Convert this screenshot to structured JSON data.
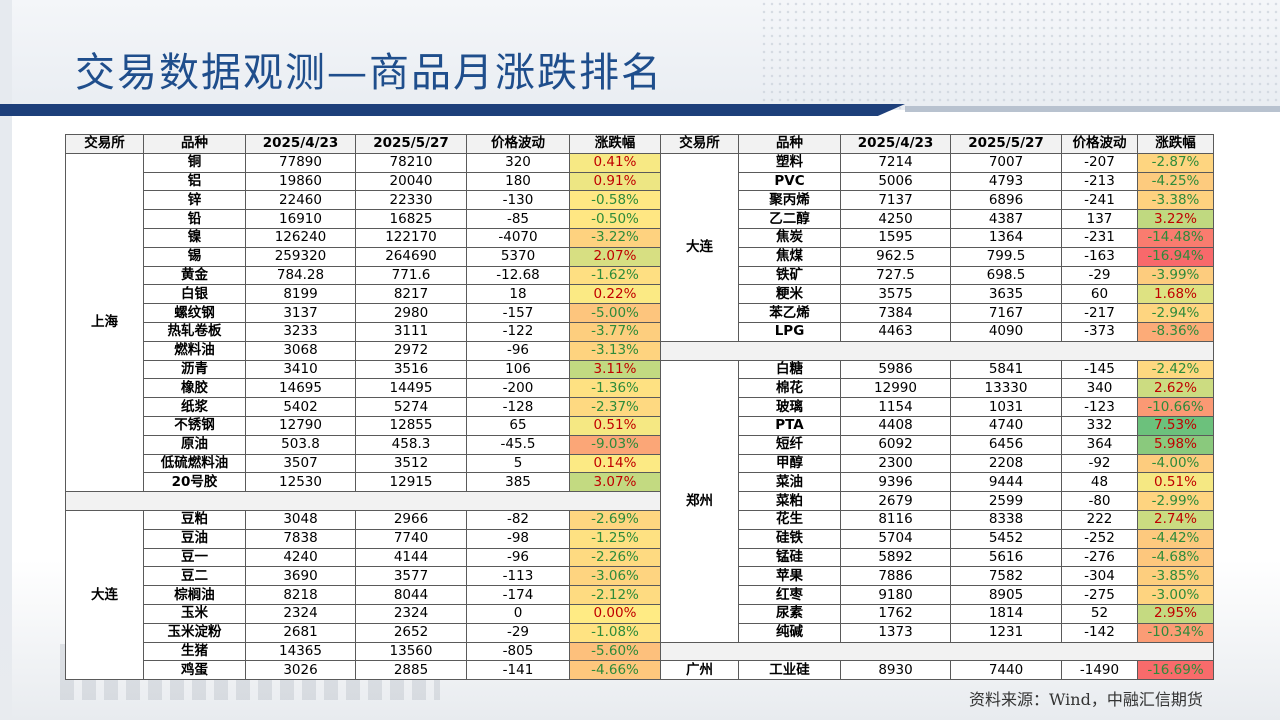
{
  "title": "交易数据观测—商品月涨跌排名",
  "source": "资料来源：Wind，中融汇信期货",
  "colors": {
    "accent": "#1d3f7a",
    "red": "#f8696b",
    "yellow": "#ffeb84",
    "green": "#63be7b"
  },
  "headers": [
    "交易所",
    "品种",
    "2025/4/23",
    "2025/5/27",
    "价格波动",
    "涨跌幅"
  ],
  "left_groups": [
    {
      "exchange": "上海",
      "rows": [
        {
          "name": "铜",
          "p1": "77890",
          "p2": "78210",
          "diff": "320",
          "chg": "0.41%"
        },
        {
          "name": "铝",
          "p1": "19860",
          "p2": "20040",
          "diff": "180",
          "chg": "0.91%"
        },
        {
          "name": "锌",
          "p1": "22460",
          "p2": "22330",
          "diff": "-130",
          "chg": "-0.58%"
        },
        {
          "name": "铅",
          "p1": "16910",
          "p2": "16825",
          "diff": "-85",
          "chg": "-0.50%"
        },
        {
          "name": "镍",
          "p1": "126240",
          "p2": "122170",
          "diff": "-4070",
          "chg": "-3.22%"
        },
        {
          "name": "锡",
          "p1": "259320",
          "p2": "264690",
          "diff": "5370",
          "chg": "2.07%"
        },
        {
          "name": "黄金",
          "p1": "784.28",
          "p2": "771.6",
          "diff": "-12.68",
          "chg": "-1.62%"
        },
        {
          "name": "白银",
          "p1": "8199",
          "p2": "8217",
          "diff": "18",
          "chg": "0.22%"
        },
        {
          "name": "螺纹钢",
          "p1": "3137",
          "p2": "2980",
          "diff": "-157",
          "chg": "-5.00%"
        },
        {
          "name": "热轧卷板",
          "p1": "3233",
          "p2": "3111",
          "diff": "-122",
          "chg": "-3.77%"
        },
        {
          "name": "燃料油",
          "p1": "3068",
          "p2": "2972",
          "diff": "-96",
          "chg": "-3.13%"
        },
        {
          "name": "沥青",
          "p1": "3410",
          "p2": "3516",
          "diff": "106",
          "chg": "3.11%"
        },
        {
          "name": "橡胶",
          "p1": "14695",
          "p2": "14495",
          "diff": "-200",
          "chg": "-1.36%"
        },
        {
          "name": "纸浆",
          "p1": "5402",
          "p2": "5274",
          "diff": "-128",
          "chg": "-2.37%"
        },
        {
          "name": "不锈钢",
          "p1": "12790",
          "p2": "12855",
          "diff": "65",
          "chg": "0.51%"
        },
        {
          "name": "原油",
          "p1": "503.8",
          "p2": "458.3",
          "diff": "-45.5",
          "chg": "-9.03%"
        },
        {
          "name": "低硫燃料油",
          "p1": "3507",
          "p2": "3512",
          "diff": "5",
          "chg": "0.14%"
        },
        {
          "name": "20号胶",
          "p1": "12530",
          "p2": "12915",
          "diff": "385",
          "chg": "3.07%"
        }
      ]
    },
    {
      "exchange": "大连",
      "rows": [
        {
          "name": "豆粕",
          "p1": "3048",
          "p2": "2966",
          "diff": "-82",
          "chg": "-2.69%"
        },
        {
          "name": "豆油",
          "p1": "7838",
          "p2": "7740",
          "diff": "-98",
          "chg": "-1.25%"
        },
        {
          "name": "豆一",
          "p1": "4240",
          "p2": "4144",
          "diff": "-96",
          "chg": "-2.26%"
        },
        {
          "name": "豆二",
          "p1": "3690",
          "p2": "3577",
          "diff": "-113",
          "chg": "-3.06%"
        },
        {
          "name": "棕榈油",
          "p1": "8218",
          "p2": "8044",
          "diff": "-174",
          "chg": "-2.12%"
        },
        {
          "name": "玉米",
          "p1": "2324",
          "p2": "2324",
          "diff": "0",
          "chg": "0.00%"
        },
        {
          "name": "玉米淀粉",
          "p1": "2681",
          "p2": "2652",
          "diff": "-29",
          "chg": "-1.08%"
        },
        {
          "name": "生猪",
          "p1": "14365",
          "p2": "13560",
          "diff": "-805",
          "chg": "-5.60%"
        },
        {
          "name": "鸡蛋",
          "p1": "3026",
          "p2": "2885",
          "diff": "-141",
          "chg": "-4.66%"
        }
      ]
    }
  ],
  "right_groups": [
    {
      "exchange": "大连",
      "rows": [
        {
          "name": "塑料",
          "p1": "7214",
          "p2": "7007",
          "diff": "-207",
          "chg": "-2.87%"
        },
        {
          "name": "PVC",
          "p1": "5006",
          "p2": "4793",
          "diff": "-213",
          "chg": "-4.25%"
        },
        {
          "name": "聚丙烯",
          "p1": "7137",
          "p2": "6896",
          "diff": "-241",
          "chg": "-3.38%"
        },
        {
          "name": "乙二醇",
          "p1": "4250",
          "p2": "4387",
          "diff": "137",
          "chg": "3.22%"
        },
        {
          "name": "焦炭",
          "p1": "1595",
          "p2": "1364",
          "diff": "-231",
          "chg": "-14.48%"
        },
        {
          "name": "焦煤",
          "p1": "962.5",
          "p2": "799.5",
          "diff": "-163",
          "chg": "-16.94%"
        },
        {
          "name": "铁矿",
          "p1": "727.5",
          "p2": "698.5",
          "diff": "-29",
          "chg": "-3.99%"
        },
        {
          "name": "粳米",
          "p1": "3575",
          "p2": "3635",
          "diff": "60",
          "chg": "1.68%"
        },
        {
          "name": "苯乙烯",
          "p1": "7384",
          "p2": "7167",
          "diff": "-217",
          "chg": "-2.94%"
        },
        {
          "name": "LPG",
          "p1": "4463",
          "p2": "4090",
          "diff": "-373",
          "chg": "-8.36%"
        }
      ]
    },
    {
      "exchange": "郑州",
      "rows": [
        {
          "name": "白糖",
          "p1": "5986",
          "p2": "5841",
          "diff": "-145",
          "chg": "-2.42%"
        },
        {
          "name": "棉花",
          "p1": "12990",
          "p2": "13330",
          "diff": "340",
          "chg": "2.62%"
        },
        {
          "name": "玻璃",
          "p1": "1154",
          "p2": "1031",
          "diff": "-123",
          "chg": "-10.66%"
        },
        {
          "name": "PTA",
          "p1": "4408",
          "p2": "4740",
          "diff": "332",
          "chg": "7.53%"
        },
        {
          "name": "短纤",
          "p1": "6092",
          "p2": "6456",
          "diff": "364",
          "chg": "5.98%"
        },
        {
          "name": "甲醇",
          "p1": "2300",
          "p2": "2208",
          "diff": "-92",
          "chg": "-4.00%"
        },
        {
          "name": "菜油",
          "p1": "9396",
          "p2": "9444",
          "diff": "48",
          "chg": "0.51%"
        },
        {
          "name": "菜粕",
          "p1": "2679",
          "p2": "2599",
          "diff": "-80",
          "chg": "-2.99%"
        },
        {
          "name": "花生",
          "p1": "8116",
          "p2": "8338",
          "diff": "222",
          "chg": "2.74%"
        },
        {
          "name": "硅铁",
          "p1": "5704",
          "p2": "5452",
          "diff": "-252",
          "chg": "-4.42%"
        },
        {
          "name": "锰硅",
          "p1": "5892",
          "p2": "5616",
          "diff": "-276",
          "chg": "-4.68%"
        },
        {
          "name": "苹果",
          "p1": "7886",
          "p2": "7582",
          "diff": "-304",
          "chg": "-3.85%"
        },
        {
          "name": "红枣",
          "p1": "9180",
          "p2": "8905",
          "diff": "-275",
          "chg": "-3.00%"
        },
        {
          "name": "尿素",
          "p1": "1762",
          "p2": "1814",
          "diff": "52",
          "chg": "2.95%"
        },
        {
          "name": "纯碱",
          "p1": "1373",
          "p2": "1231",
          "diff": "-142",
          "chg": "-10.34%"
        }
      ]
    },
    {
      "exchange": "广州",
      "rows": [
        {
          "name": "工业硅",
          "p1": "8930",
          "p2": "7440",
          "diff": "-1490",
          "chg": "-16.69%"
        }
      ]
    }
  ]
}
